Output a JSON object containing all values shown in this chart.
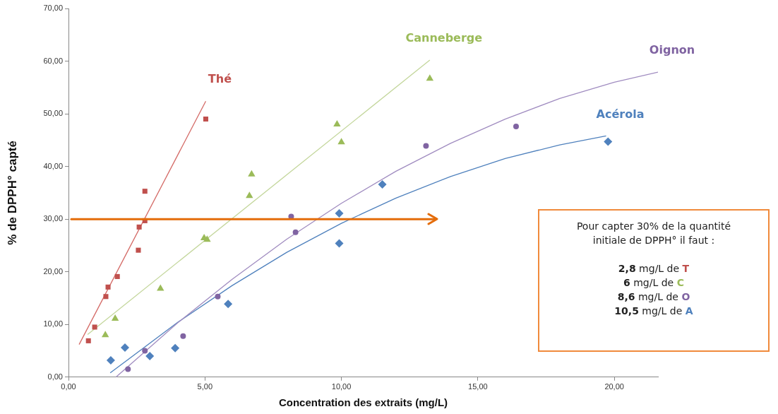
{
  "chart_data": {
    "type": "scatter",
    "xlabel": "Concentration des extraits (mg/L)",
    "ylabel": "% de DPPH° capté",
    "xlim": [
      0,
      21.6
    ],
    "xticks": [
      {
        "value": 0,
        "label": "0,00"
      },
      {
        "value": 5,
        "label": "5,00"
      },
      {
        "value": 10,
        "label": "10,00"
      },
      {
        "value": 15,
        "label": "15,00"
      },
      {
        "value": 20,
        "label": "20,00"
      }
    ],
    "ylim": [
      0,
      70
    ],
    "yticks": [
      {
        "value": 0,
        "label": "0,00"
      },
      {
        "value": 10,
        "label": "10,00"
      },
      {
        "value": 20,
        "label": "20,00"
      },
      {
        "value": 30,
        "label": "30,00"
      },
      {
        "value": 40,
        "label": "40,00"
      },
      {
        "value": 50,
        "label": "50,00"
      },
      {
        "value": 60,
        "label": "60,00"
      },
      {
        "value": 70,
        "label": "70,00"
      }
    ],
    "grid": false,
    "legend": false,
    "series": [
      {
        "name": "Thé",
        "marker": "square",
        "color": "#c0504d",
        "x": [
          0.73,
          0.96,
          1.37,
          1.45,
          1.79,
          2.56,
          2.59,
          2.8,
          2.8,
          5.03
        ],
        "values": [
          6.9,
          9.5,
          15.3,
          17.1,
          19.1,
          24.1,
          28.5,
          29.7,
          35.3,
          49.0
        ]
      },
      {
        "type": "line",
        "marker": "none",
        "color": "#d46a66",
        "x": [
          0.39,
          5.03
        ],
        "values": [
          6.2,
          52.4
        ]
      },
      {
        "name": "Canneberge",
        "marker": "triangle",
        "color": "#9bbb59",
        "x": [
          1.35,
          1.71,
          3.37,
          4.97,
          5.08,
          6.63,
          6.71,
          9.84,
          10.0,
          13.24
        ],
        "values": [
          8.0,
          11.1,
          16.8,
          26.4,
          26.1,
          34.4,
          38.5,
          48.0,
          44.6,
          56.7
        ]
      },
      {
        "type": "line",
        "marker": "none",
        "color": "#c3d69b",
        "x": [
          0.7,
          13.24
        ],
        "values": [
          8.1,
          60.2
        ]
      },
      {
        "name": "Oignon",
        "marker": "circle",
        "color": "#8064a2",
        "x": [
          2.18,
          2.8,
          4.2,
          5.47,
          8.16,
          8.32,
          13.1,
          16.4
        ],
        "values": [
          1.5,
          5.0,
          7.8,
          15.3,
          30.5,
          27.5,
          43.9,
          47.6
        ]
      },
      {
        "type": "line",
        "marker": "none",
        "color": "#a08cc0",
        "x": [
          1.74,
          4,
          6,
          8,
          10,
          12,
          14,
          16,
          18,
          20,
          21.6
        ],
        "values": [
          0,
          10.3,
          18.6,
          26.2,
          33.0,
          39.1,
          44.4,
          49.0,
          52.9,
          56.0,
          57.9
        ]
      },
      {
        "name": "Acérola",
        "marker": "diamond",
        "color": "#4f81bd",
        "x": [
          1.55,
          2.07,
          2.98,
          3.91,
          5.85,
          9.92,
          9.92,
          11.5,
          19.77
        ],
        "values": [
          3.2,
          5.6,
          4.0,
          5.5,
          13.9,
          25.4,
          31.1,
          36.6,
          44.7
        ]
      },
      {
        "type": "line",
        "marker": "none",
        "color": "#4f81bd",
        "x": [
          1.53,
          4,
          6,
          8,
          10,
          12,
          14,
          16,
          18,
          19.7
        ],
        "values": [
          0.8,
          10.4,
          17.4,
          23.7,
          29.2,
          34.0,
          38.1,
          41.5,
          44.1,
          45.8
        ]
      }
    ],
    "ref_lines": [
      {
        "axis": "y",
        "value": 30,
        "color": "#e46c0a"
      }
    ],
    "annotations": [
      "Pour capter 30% de la quantité initiale de DPPH° il faut :",
      "2,8 mg/L de T",
      "6 mg/L de C",
      "8,6 mg/L de O",
      "10,5 mg/L de A"
    ]
  }
}
